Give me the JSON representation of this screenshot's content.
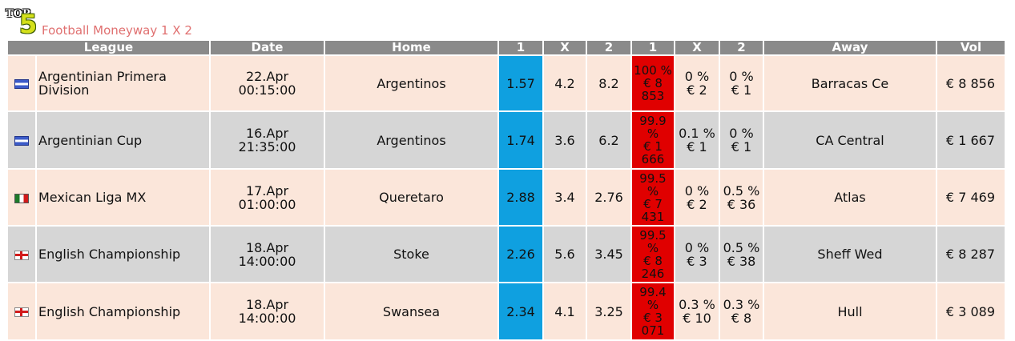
{
  "logo": {
    "top": "TOP",
    "five": "5"
  },
  "title": "Football Moneyway 1 X 2",
  "headers": [
    "League",
    "Date",
    "Home",
    "1",
    "X",
    "2",
    "1",
    "X",
    "2",
    "Away",
    "Vol"
  ],
  "rows": [
    {
      "flag": "argentina-flag-icon",
      "league": "Argentinian Primera Division",
      "date": "22.Apr",
      "time": "00:15:00",
      "home": "Argentinos",
      "o1": "1.57",
      "ox": "4.2",
      "o2": "8.2",
      "p1": "100 %",
      "m1": "€ 8 853",
      "px": "0 %",
      "mx": "€ 2",
      "p2": "0 %",
      "m2": "€ 1",
      "away": "Barracas Ce",
      "vol": "€ 8 856"
    },
    {
      "flag": "argentina-flag-icon",
      "league": "Argentinian Cup",
      "date": "16.Apr",
      "time": "21:35:00",
      "home": "Argentinos",
      "o1": "1.74",
      "ox": "3.6",
      "o2": "6.2",
      "p1": "99.9 %",
      "m1": "€ 1 666",
      "px": "0.1 %",
      "mx": "€ 1",
      "p2": "0 %",
      "m2": "€ 1",
      "away": "CA Central",
      "vol": "€ 1 667"
    },
    {
      "flag": "mexico-flag-icon",
      "league": "Mexican Liga MX",
      "date": "17.Apr",
      "time": "01:00:00",
      "home": "Queretaro",
      "o1": "2.88",
      "ox": "3.4",
      "o2": "2.76",
      "p1": "99.5 %",
      "m1": "€ 7 431",
      "px": "0 %",
      "mx": "€ 2",
      "p2": "0.5 %",
      "m2": "€ 36",
      "away": "Atlas",
      "vol": "€ 7 469"
    },
    {
      "flag": "england-flag-icon",
      "league": "English Championship",
      "date": "18.Apr",
      "time": "14:00:00",
      "home": "Stoke",
      "o1": "2.26",
      "ox": "5.6",
      "o2": "3.45",
      "p1": "99.5 %",
      "m1": "€ 8 246",
      "px": "0 %",
      "mx": "€ 3",
      "p2": "0.5 %",
      "m2": "€ 38",
      "away": "Sheff Wed",
      "vol": "€ 8 287"
    },
    {
      "flag": "england-flag-icon",
      "league": "English Championship",
      "date": "18.Apr",
      "time": "14:00:00",
      "home": "Swansea",
      "o1": "2.34",
      "ox": "4.1",
      "o2": "3.25",
      "p1": "99.4 %",
      "m1": "€ 3 071",
      "px": "0.3 %",
      "mx": "€ 10",
      "p2": "0.3 %",
      "m2": "€ 8",
      "away": "Hull",
      "vol": "€ 3 089"
    }
  ],
  "colors": {
    "odd_row": "#fbe6da",
    "even_row": "#d6d6d6",
    "odds_highlight": "#0fa0e0",
    "money_highlight": "#e00000",
    "header": "#8a8a8a",
    "title": "#e07070"
  }
}
